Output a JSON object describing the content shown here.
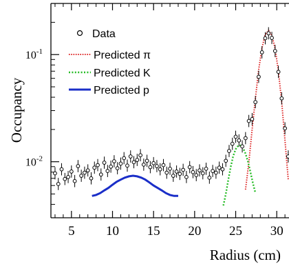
{
  "chart_data": {
    "type": "scatter",
    "xlabel": "Radius (cm)",
    "ylabel": "Occupancy",
    "xlim": [
      2.5,
      33
    ],
    "ylim": [
      0.003,
      0.3
    ],
    "y_scale": "log",
    "grid": false,
    "legend_position": "top-left",
    "x_ticks": [
      5,
      10,
      15,
      20,
      25,
      30
    ],
    "y_ticks": [
      {
        "value": 0.01,
        "base": "10",
        "exp": "-2"
      },
      {
        "value": 0.1,
        "base": "10",
        "exp": "-1"
      }
    ],
    "legend": [
      {
        "label": "Data",
        "style": "marker"
      },
      {
        "label": "Predicted π",
        "style": "dotted",
        "color": "#dd2222"
      },
      {
        "label": "Predicted K",
        "style": "dotted",
        "color": "#22bb22"
      },
      {
        "label": "Predicted p",
        "style": "solid",
        "color": "#1a2ec8"
      }
    ],
    "series": [
      {
        "name": "Data",
        "x": [
          3.0,
          3.4,
          3.8,
          4.2,
          4.6,
          5.0,
          5.4,
          5.8,
          6.2,
          6.6,
          7.0,
          7.4,
          7.8,
          8.2,
          8.6,
          9.0,
          9.4,
          9.8,
          10.2,
          10.6,
          11.0,
          11.4,
          11.8,
          12.2,
          12.6,
          13.0,
          13.4,
          13.8,
          14.2,
          14.6,
          15.0,
          15.4,
          15.8,
          16.2,
          16.6,
          17.0,
          17.4,
          17.8,
          18.2,
          18.6,
          19.0,
          19.4,
          19.8,
          20.2,
          20.6,
          21.0,
          21.4,
          21.8,
          22.2,
          22.6,
          23.0,
          23.4,
          23.8,
          24.2,
          24.6,
          25.0,
          25.4,
          25.8,
          26.2,
          26.6,
          27.0,
          27.4,
          27.8,
          28.2,
          28.6,
          29.0,
          29.4,
          29.8,
          30.2,
          30.6,
          31.0,
          31.4,
          31.8,
          32.2,
          32.6
        ],
        "y": [
          0.0078,
          0.0062,
          0.0085,
          0.0069,
          0.0072,
          0.0081,
          0.0066,
          0.0091,
          0.0074,
          0.0079,
          0.0083,
          0.007,
          0.0088,
          0.0093,
          0.0076,
          0.0098,
          0.0082,
          0.009,
          0.0101,
          0.0087,
          0.0096,
          0.0108,
          0.0092,
          0.0112,
          0.0099,
          0.0104,
          0.0115,
          0.0094,
          0.0102,
          0.0089,
          0.0097,
          0.0091,
          0.0085,
          0.0093,
          0.0079,
          0.0086,
          0.0074,
          0.0081,
          0.0077,
          0.0084,
          0.0072,
          0.0089,
          0.008,
          0.0075,
          0.0083,
          0.0078,
          0.0086,
          0.0071,
          0.0082,
          0.0079,
          0.0088,
          0.0085,
          0.0102,
          0.0126,
          0.0147,
          0.0171,
          0.0158,
          0.0139,
          0.0166,
          0.024,
          0.025,
          0.036,
          0.062,
          0.105,
          0.142,
          0.158,
          0.143,
          0.108,
          0.069,
          0.039,
          0.0205,
          0.0112,
          0.0074,
          0.0061,
          0.0058
        ]
      },
      {
        "name": "Predicted π",
        "x": [
          26.2,
          26.6,
          27.0,
          27.4,
          27.8,
          28.2,
          28.6,
          29.0,
          29.4,
          29.8,
          30.2,
          30.6,
          31.0,
          31.4
        ],
        "y": [
          0.0055,
          0.0098,
          0.02,
          0.039,
          0.072,
          0.115,
          0.154,
          0.168,
          0.152,
          0.114,
          0.07,
          0.036,
          0.016,
          0.0068
        ]
      },
      {
        "name": "Predicted K",
        "x": [
          23.5,
          23.8,
          24.1,
          24.4,
          24.7,
          25.0,
          25.3,
          25.6,
          25.9,
          26.2,
          26.5,
          26.8,
          27.1,
          27.4
        ],
        "y": [
          0.0039,
          0.005,
          0.0068,
          0.009,
          0.0113,
          0.0131,
          0.0141,
          0.0142,
          0.0134,
          0.0119,
          0.01,
          0.008,
          0.0063,
          0.0051
        ]
      },
      {
        "name": "Predicted p",
        "x": [
          7.5,
          8.0,
          8.5,
          9.0,
          9.5,
          10.0,
          10.5,
          11.0,
          11.5,
          12.0,
          12.5,
          13.0,
          13.5,
          14.0,
          14.5,
          15.0,
          15.5,
          16.0,
          16.5,
          17.0,
          17.5,
          18.0
        ],
        "y": [
          0.0048,
          0.0049,
          0.0051,
          0.0054,
          0.0057,
          0.0061,
          0.0065,
          0.0068,
          0.0071,
          0.0073,
          0.0074,
          0.0073,
          0.0071,
          0.0068,
          0.0064,
          0.006,
          0.0057,
          0.0054,
          0.0051,
          0.0049,
          0.0048,
          0.0048
        ]
      }
    ]
  }
}
